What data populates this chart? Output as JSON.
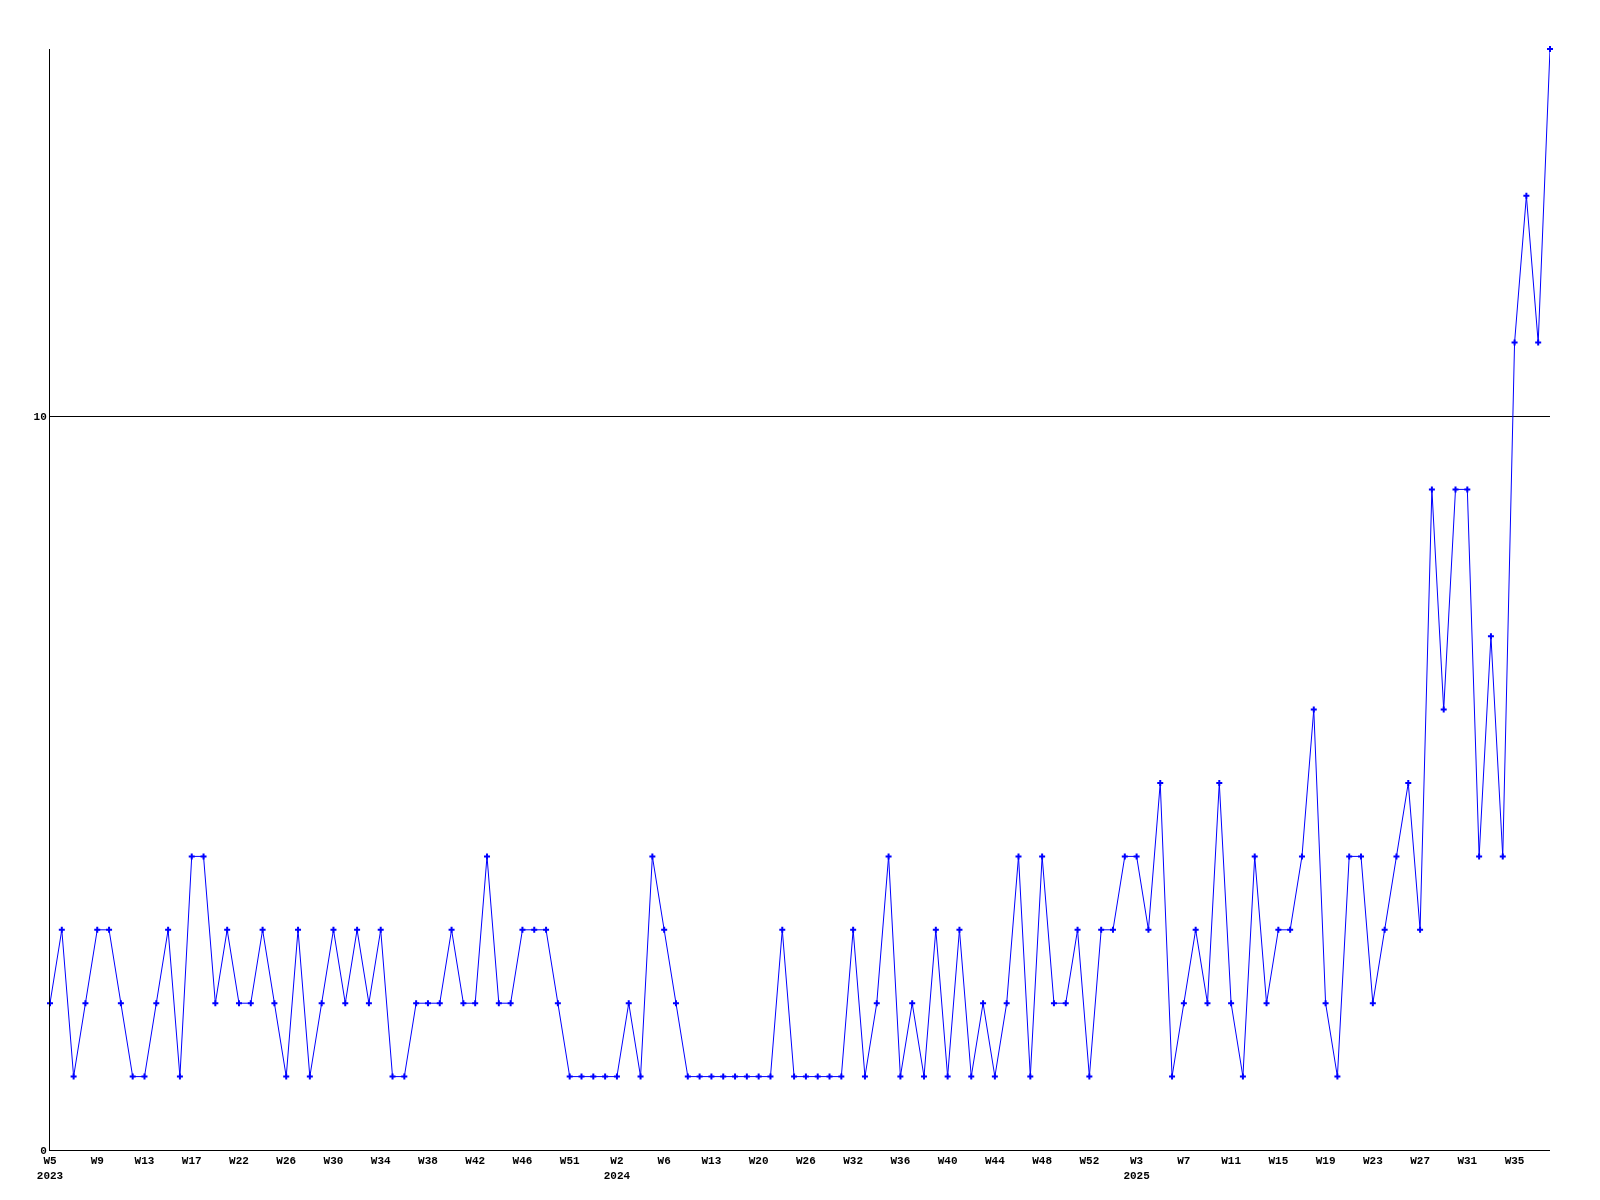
{
  "chart_data": {
    "type": "line",
    "categories": [
      "W5\n2023",
      null,
      null,
      null,
      "W9",
      null,
      null,
      null,
      "W13",
      null,
      null,
      null,
      "W17",
      null,
      null,
      null,
      "W22",
      null,
      null,
      null,
      "W26",
      null,
      null,
      null,
      "W30",
      null,
      null,
      null,
      "W34",
      null,
      null,
      null,
      "W38",
      null,
      null,
      null,
      "W42",
      null,
      null,
      null,
      "W46",
      null,
      null,
      null,
      "W51",
      null,
      null,
      null,
      "W2\n2024",
      null,
      null,
      null,
      "W6",
      null,
      null,
      null,
      "W13",
      null,
      null,
      null,
      "W20",
      null,
      null,
      null,
      "W26",
      null,
      null,
      null,
      "W32",
      null,
      null,
      null,
      "W36",
      null,
      null,
      null,
      "W40",
      null,
      null,
      null,
      "W44",
      null,
      null,
      null,
      "W48",
      null,
      null,
      null,
      "W52",
      null,
      null,
      null,
      "W3\n2025",
      null,
      null,
      null,
      "W7",
      null,
      null,
      null,
      "W11",
      null,
      null,
      null,
      "W15",
      null,
      null,
      null,
      "W19",
      null,
      null,
      null,
      "W23",
      null,
      null,
      null,
      "W27",
      null,
      null,
      null,
      "W31",
      null,
      null,
      null,
      "W35",
      null,
      null,
      null
    ],
    "series": [
      {
        "color": "#0000ff",
        "values": [
          2,
          3,
          1,
          2,
          3,
          3,
          2,
          1,
          1,
          2,
          3,
          1,
          4,
          4,
          2,
          3,
          2,
          2,
          3,
          2,
          1,
          3,
          1,
          2,
          3,
          2,
          3,
          2,
          3,
          1,
          1,
          2,
          2,
          2,
          3,
          2,
          2,
          4,
          2,
          2,
          3,
          3,
          3,
          2,
          1,
          1,
          1,
          1,
          1,
          2,
          1,
          4,
          3,
          2,
          1,
          1,
          1,
          1,
          1,
          1,
          1,
          1,
          3,
          1,
          1,
          1,
          1,
          1,
          3,
          1,
          2,
          4,
          1,
          2,
          1,
          3,
          1,
          3,
          1,
          2,
          1,
          2,
          4,
          1,
          4,
          2,
          2,
          3,
          1,
          3,
          3,
          4,
          4,
          3,
          5,
          1,
          2,
          3,
          2,
          5,
          2,
          1,
          4,
          2,
          3,
          3,
          4,
          6,
          2,
          1,
          4,
          4,
          2,
          3,
          4,
          5,
          3,
          9,
          6,
          9,
          9,
          4,
          7,
          4,
          11,
          13,
          11,
          15
        ]
      }
    ],
    "ylim": [
      0,
      15
    ],
    "yticks": [
      0,
      10
    ],
    "grid": "y",
    "marker": "cross",
    "line_style": "solid"
  }
}
